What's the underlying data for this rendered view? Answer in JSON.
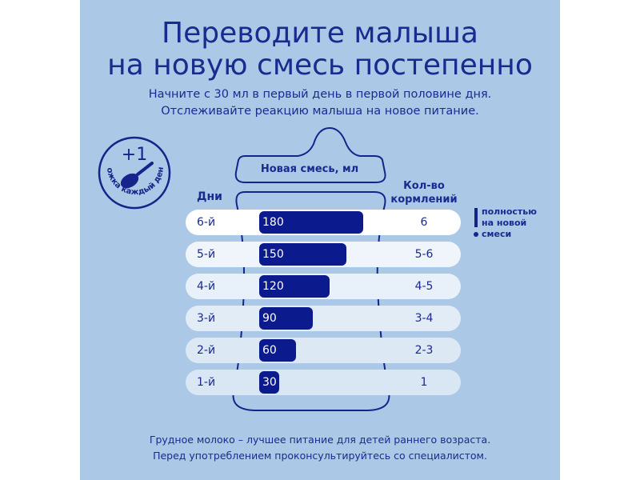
{
  "header": {
    "title_line1": "Переводите малыша",
    "title_line2": "на новую смесь постепенно",
    "subtitle_line1": "Начните с 30 мл в первый день в первой половине дня.",
    "subtitle_line2": "Отслеживайте реакцию малыша на новое питание."
  },
  "badge": {
    "plus": "+1",
    "text": "ложка каждый день",
    "icon": "measuring-spoon-icon"
  },
  "note": {
    "line1": "полностью",
    "line2": "на новой",
    "line3": "смеси",
    "icon": "exclamation-icon"
  },
  "footer": {
    "line1": "Грудное молоко – лучшее питание для детей раннего возраста.",
    "line2": "Перед употреблением проконсультируйтесь со специалистом."
  },
  "colors": {
    "background": "#abc9e7",
    "bar": "#0b1b8e",
    "text": "#1a2a8f"
  },
  "chart_data": {
    "type": "bar",
    "orientation": "horizontal",
    "xlabel": "Новая смесь, мл",
    "ylabel": "Дни",
    "extra_column_label": "Кол-во кормлений",
    "categories": [
      "6-й",
      "5-й",
      "4-й",
      "3-й",
      "2-й",
      "1-й"
    ],
    "values": [
      180,
      150,
      120,
      90,
      60,
      30
    ],
    "value_labels": [
      "180",
      "150",
      "120",
      "90",
      "60",
      "30"
    ],
    "feedings": [
      "6",
      "5-6",
      "4-5",
      "3-4",
      "2-3",
      "1"
    ]
  }
}
